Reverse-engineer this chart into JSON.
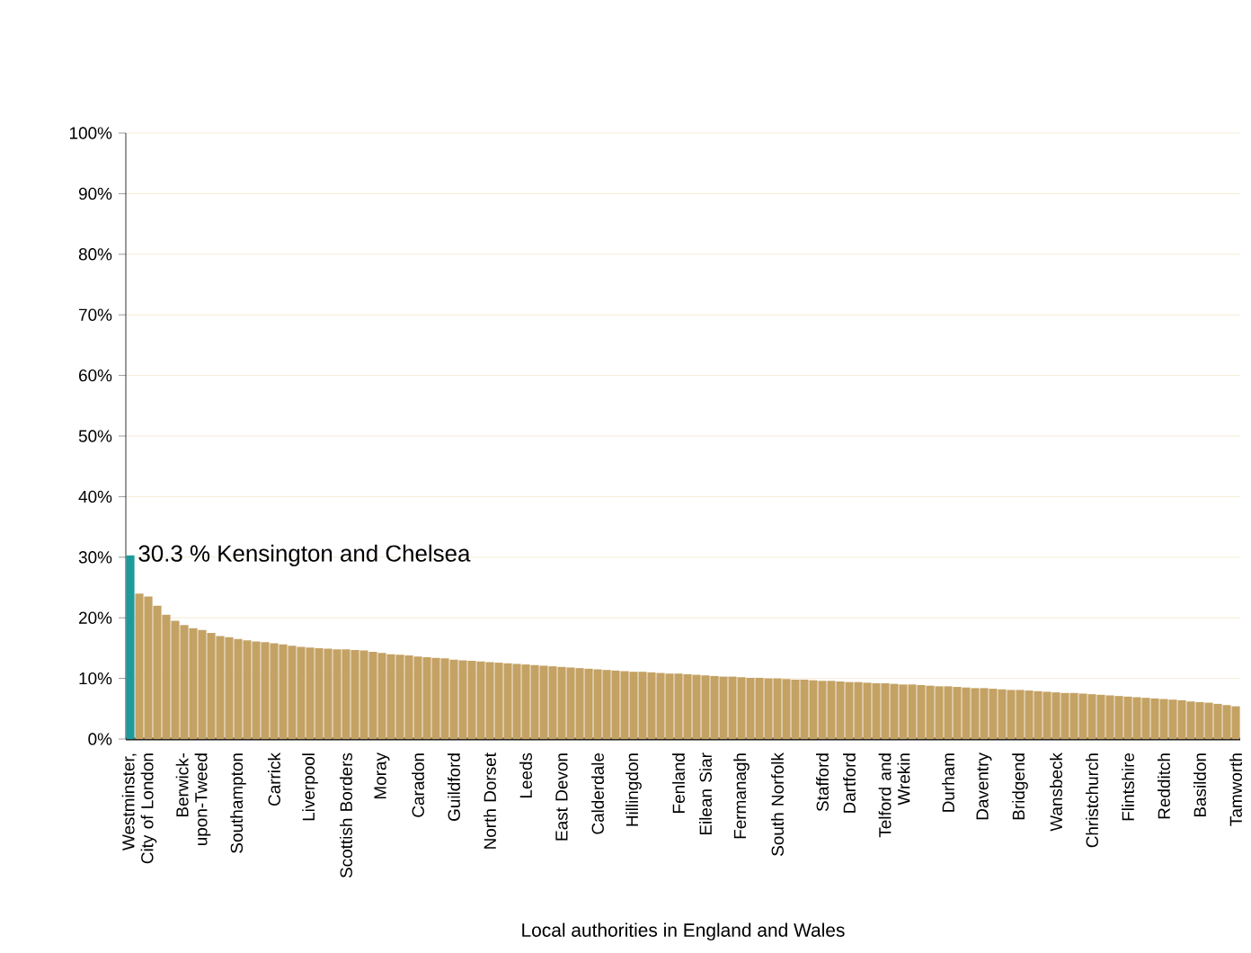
{
  "chart_data": {
    "type": "bar",
    "xlabel": "Local authorities in England and Wales",
    "categories": [
      null,
      "Westminster, City of London",
      null,
      null,
      null,
      null,
      null,
      "Berwick-upon-Tweed",
      null,
      null,
      null,
      null,
      "Southampton",
      null,
      null,
      null,
      "Carrick",
      null,
      null,
      null,
      "Liverpool",
      null,
      null,
      null,
      "Scottish Borders",
      null,
      null,
      null,
      "Moray",
      null,
      null,
      null,
      "Caradon",
      null,
      null,
      null,
      "Guildford",
      null,
      null,
      null,
      "North Dorset",
      null,
      null,
      null,
      "Leeds",
      null,
      null,
      null,
      "East Devon",
      null,
      null,
      null,
      "Calderdale",
      null,
      null,
      null,
      "Hillingdon",
      null,
      null,
      null,
      null,
      "Fenland",
      null,
      null,
      "Eilean Siar",
      null,
      null,
      null,
      "Fermanagh",
      null,
      null,
      null,
      "South Norfolk",
      null,
      null,
      null,
      null,
      "Stafford",
      null,
      null,
      "Dartford",
      null,
      null,
      null,
      null,
      "Telford and Wrekin",
      null,
      null,
      null,
      null,
      null,
      "Durham",
      null,
      null,
      null,
      "Daventry",
      null,
      null,
      null,
      "Bridgend",
      null,
      null,
      null,
      "Wansbeck",
      null,
      null,
      null,
      "Christchurch",
      null,
      null,
      null,
      "Flintshire",
      null,
      null,
      null,
      "Redditch",
      null,
      null,
      null,
      "Basildon",
      null,
      null,
      null,
      "Tamworth"
    ],
    "values": [
      30.3,
      24,
      23.5,
      22,
      20.5,
      19.5,
      18.8,
      18.3,
      18,
      17.5,
      17,
      16.8,
      16.5,
      16.3,
      16.1,
      16,
      15.8,
      15.6,
      15.4,
      15.2,
      15.1,
      15,
      14.9,
      14.8,
      14.8,
      14.7,
      14.6,
      14.4,
      14.2,
      14,
      13.9,
      13.8,
      13.6,
      13.5,
      13.4,
      13.3,
      13.1,
      13,
      12.9,
      12.8,
      12.7,
      12.6,
      12.5,
      12.4,
      12.3,
      12.2,
      12.1,
      12,
      11.9,
      11.8,
      11.7,
      11.6,
      11.5,
      11.4,
      11.3,
      11.2,
      11.1,
      11.1,
      11,
      10.9,
      10.8,
      10.8,
      10.7,
      10.6,
      10.5,
      10.4,
      10.3,
      10.3,
      10.2,
      10.1,
      10.1,
      10,
      10,
      9.9,
      9.8,
      9.8,
      9.7,
      9.6,
      9.6,
      9.5,
      9.4,
      9.4,
      9.3,
      9.2,
      9.2,
      9.1,
      9,
      9,
      8.9,
      8.8,
      8.7,
      8.7,
      8.6,
      8.5,
      8.4,
      8.4,
      8.3,
      8.2,
      8.1,
      8.1,
      8,
      7.9,
      7.8,
      7.7,
      7.6,
      7.6,
      7.5,
      7.4,
      7.3,
      7.2,
      7.1,
      7,
      6.9,
      6.8,
      6.7,
      6.6,
      6.5,
      6.4,
      6.2,
      6.1,
      6,
      5.8,
      5.6,
      5.4
    ],
    "colors": [
      "#1f9a9a",
      "#c4a264",
      "#c4a264",
      "#c4a264",
      "#c4a264",
      "#c4a264",
      "#c4a264",
      "#c4a264",
      "#c4a264",
      "#c4a264",
      "#c4a264",
      "#c4a264",
      "#c4a264",
      "#c4a264",
      "#c4a264",
      "#c4a264",
      "#c4a264",
      "#c4a264",
      "#c4a264",
      "#c4a264",
      "#c4a264",
      "#c4a264",
      "#c4a264",
      "#c4a264",
      "#c4a264",
      "#c4a264",
      "#c4a264",
      "#c4a264",
      "#c4a264",
      "#c4a264",
      "#c4a264",
      "#c4a264",
      "#c4a264",
      "#c4a264",
      "#c4a264",
      "#c4a264",
      "#c4a264",
      "#c4a264",
      "#c4a264",
      "#c4a264",
      "#c4a264",
      "#c4a264",
      "#c4a264",
      "#c4a264",
      "#c4a264",
      "#c4a264",
      "#c4a264",
      "#c4a264",
      "#c4a264",
      "#c4a264",
      "#c4a264",
      "#c4a264",
      "#c4a264",
      "#c4a264",
      "#c4a264",
      "#c4a264",
      "#c4a264",
      "#c4a264",
      "#c4a264",
      "#c4a264",
      "#c4a264",
      "#c4a264",
      "#c4a264",
      "#c4a264",
      "#c4a264",
      "#c4a264",
      "#c4a264",
      "#c4a264",
      "#c4a264",
      "#c4a264",
      "#c4a264",
      "#c4a264",
      "#c4a264",
      "#c4a264",
      "#c4a264",
      "#c4a264",
      "#c4a264",
      "#c4a264",
      "#c4a264",
      "#c4a264",
      "#c4a264",
      "#c4a264",
      "#c4a264",
      "#c4a264",
      "#c4a264",
      "#c4a264",
      "#c4a264",
      "#c4a264",
      "#c4a264",
      "#c4a264",
      "#c4a264",
      "#c4a264",
      "#c4a264",
      "#c4a264",
      "#c4a264",
      "#c4a264",
      "#c4a264",
      "#c4a264",
      "#c4a264",
      "#c4a264",
      "#c4a264",
      "#c4a264",
      "#c4a264",
      "#c4a264",
      "#c4a264",
      "#c4a264",
      "#c4a264",
      "#c4a264",
      "#c4a264",
      "#c4a264",
      "#c4a264",
      "#c4a264",
      "#c4a264",
      "#c4a264",
      "#c4a264",
      "#c4a264",
      "#c4a264",
      "#c4a264",
      "#c4a264",
      "#c4a264",
      "#c4a264",
      "#c4a264",
      "#c4a264",
      "#c4a264"
    ],
    "ylim": [
      0,
      100
    ],
    "yticks": [
      {
        "value": 0,
        "label": "0%"
      },
      {
        "value": 10,
        "label": "10%"
      },
      {
        "value": 20,
        "label": "20%"
      },
      {
        "value": 30,
        "label": "30%"
      },
      {
        "value": 40,
        "label": "40%"
      },
      {
        "value": 50,
        "label": "50%"
      },
      {
        "value": 60,
        "label": "60%"
      },
      {
        "value": 70,
        "label": "70%"
      },
      {
        "value": 80,
        "label": "80%"
      },
      {
        "value": 90,
        "label": "90%"
      },
      {
        "value": 100,
        "label": "100%"
      }
    ],
    "grid": "y",
    "annotations": [
      "30.3 % Kensington and Chelsea"
    ]
  }
}
